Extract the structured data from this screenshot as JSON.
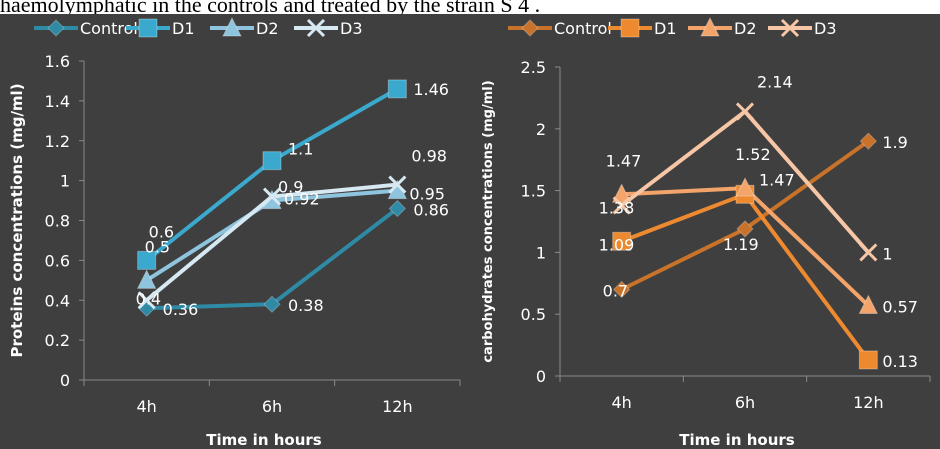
{
  "caption": "haemolymphatic in the controls and treated by the strain S 4 .",
  "colors": {
    "background": "#3f3f3f",
    "text": "#ffffff",
    "left_control": "#2f8aa5",
    "left_d1": "#3ba9cd",
    "left_d2": "#8ec4dd",
    "left_d3": "#d6e8f1",
    "right_control": "#c8722a",
    "right_d1": "#ed8a30",
    "right_d2": "#f2a46a",
    "right_d3": "#f6c6a6"
  },
  "chart_data": [
    {
      "type": "line",
      "categories": [
        "4h",
        "6h",
        "12h"
      ],
      "xlabel": "Time in hours",
      "ylabel": "Proteins  concentrations (mg/ml)",
      "ylim": [
        0,
        1.6
      ],
      "yticks": [
        "0",
        "0.2",
        "0.4",
        "0.6",
        "0.8",
        "1",
        "1.2",
        "1.4",
        "1.6"
      ],
      "grid": false,
      "legend": "top",
      "series": [
        {
          "name": "Control",
          "values": [
            0.36,
            0.38,
            0.86
          ],
          "labels": [
            "0.36",
            "0.38",
            "0.86"
          ],
          "marker": "diamond",
          "color": "#2f8aa5"
        },
        {
          "name": "D1",
          "values": [
            0.6,
            1.1,
            1.46
          ],
          "labels": [
            "0.6",
            "1.1",
            "1.46"
          ],
          "marker": "square",
          "color": "#3ba9cd"
        },
        {
          "name": "D2",
          "values": [
            0.5,
            0.9,
            0.95
          ],
          "labels": [
            "0.5",
            "0.9",
            "0.95"
          ],
          "marker": "triangle",
          "color": "#8ec4dd"
        },
        {
          "name": "D3",
          "values": [
            0.4,
            0.92,
            0.98
          ],
          "labels": [
            "0.4",
            "0.92",
            "0.98"
          ],
          "marker": "x",
          "color": "#d6e8f1"
        }
      ]
    },
    {
      "type": "line",
      "categories": [
        "4h",
        "6h",
        "12h"
      ],
      "xlabel": "Time in hours",
      "ylabel": "carbohydrates concentrations (mg/ml)",
      "ylim": [
        0,
        2.5
      ],
      "yticks": [
        "0",
        "0.5",
        "1",
        "1.5",
        "2",
        "2.5"
      ],
      "grid": false,
      "legend": "top",
      "series": [
        {
          "name": "Control",
          "values": [
            0.7,
            1.19,
            1.9
          ],
          "labels": [
            "0.7",
            "1.19",
            "1.9"
          ],
          "marker": "diamond",
          "color": "#c8722a"
        },
        {
          "name": "D1",
          "values": [
            1.09,
            1.47,
            0.13
          ],
          "labels": [
            "1.09",
            "1.47",
            "0.13"
          ],
          "marker": "square",
          "color": "#ed8a30"
        },
        {
          "name": "D2",
          "values": [
            1.47,
            1.52,
            0.57
          ],
          "labels": [
            "1.47",
            "1.52",
            "0.57"
          ],
          "marker": "triangle",
          "color": "#f2a46a"
        },
        {
          "name": "D3",
          "values": [
            1.38,
            2.14,
            1
          ],
          "labels": [
            "1.38",
            "2.14",
            "1"
          ],
          "marker": "x",
          "color": "#f6c6a6"
        }
      ]
    }
  ]
}
